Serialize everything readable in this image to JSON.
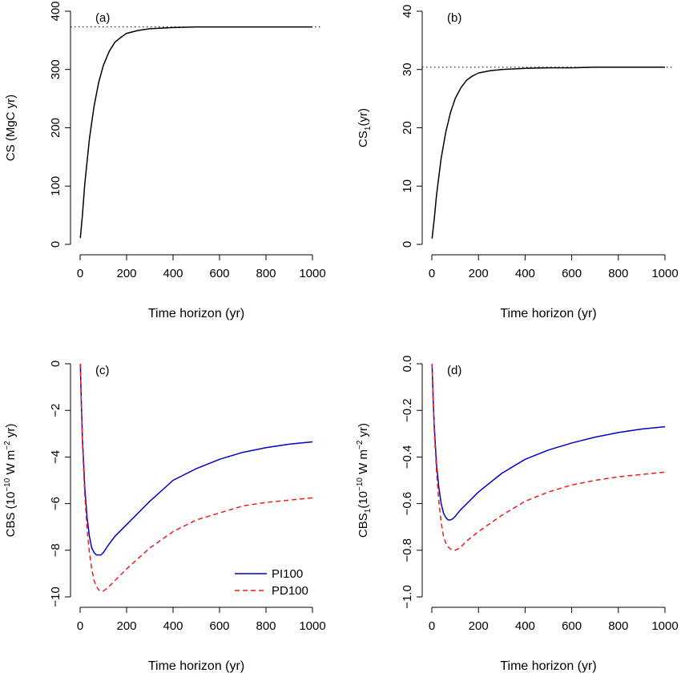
{
  "chart_data": [
    {
      "panel": "(a)",
      "type": "line",
      "xlabel": "Time horizon (yr)",
      "ylabel": "CS (MgC yr)",
      "xlim": [
        0,
        1000
      ],
      "ylim": [
        0,
        400
      ],
      "xticks": [
        0,
        200,
        400,
        600,
        800,
        1000
      ],
      "yticks": [
        0,
        100,
        200,
        300,
        400
      ],
      "asymptote": 373,
      "asymptote_style": "dotted",
      "series": [
        {
          "color": "#000000",
          "style": "solid",
          "x": [
            1,
            10,
            20,
            40,
            60,
            80,
            100,
            125,
            150,
            175,
            200,
            250,
            300,
            400,
            500,
            600,
            700,
            800,
            900,
            1000
          ],
          "y": [
            11,
            51,
            103,
            181,
            237,
            278,
            307,
            331,
            347,
            355,
            362,
            367,
            370,
            372,
            373,
            373,
            373,
            373,
            373,
            373
          ]
        }
      ]
    },
    {
      "panel": "(b)",
      "type": "line",
      "xlabel": "Time horizon (yr)",
      "ylabel_main": "CS",
      "ylabel_sub": "1",
      "ylabel_rest": "(yr)",
      "xlim": [
        0,
        1000
      ],
      "ylim": [
        0,
        40
      ],
      "xticks": [
        0,
        200,
        400,
        600,
        800,
        1000
      ],
      "yticks": [
        0,
        10,
        20,
        30,
        40
      ],
      "asymptote": 30.4,
      "asymptote_style": "dotted",
      "series": [
        {
          "color": "#000000",
          "style": "solid",
          "x": [
            1,
            10,
            20,
            40,
            60,
            80,
            100,
            125,
            150,
            175,
            200,
            250,
            300,
            400,
            500,
            600,
            700,
            800,
            900,
            1000
          ],
          "y": [
            1.0,
            4.2,
            8.4,
            14.8,
            19.3,
            22.6,
            25.0,
            26.9,
            28.2,
            28.9,
            29.4,
            29.8,
            30.0,
            30.2,
            30.3,
            30.3,
            30.4,
            30.4,
            30.4,
            30.4
          ]
        }
      ]
    },
    {
      "panel": "(c)",
      "type": "line",
      "xlabel": "Time horizon (yr)",
      "ylabel_pre": "CBS (10",
      "ylabel_sup1": "−10",
      "ylabel_mid": " W m",
      "ylabel_sup2": "−2",
      "ylabel_post": " yr)",
      "xlim": [
        0,
        1000
      ],
      "ylim": [
        -10,
        0
      ],
      "xticks": [
        0,
        200,
        400,
        600,
        800,
        1000
      ],
      "yticks": [
        0,
        -2,
        -4,
        -6,
        -8,
        -10
      ],
      "legend": [
        {
          "label": "PI100",
          "color": "#0000cc",
          "style": "solid"
        },
        {
          "label": "PD100",
          "color": "#ee1c1c",
          "style": "dashed"
        }
      ],
      "legend_position": "bottom-right of lower plot area",
      "series": [
        {
          "name": "PI100",
          "color": "#0000cc",
          "style": "solid",
          "x": [
            1,
            5,
            10,
            20,
            30,
            40,
            50,
            60,
            70,
            80,
            90,
            100,
            120,
            150,
            200,
            300,
            400,
            500,
            600,
            700,
            800,
            900,
            1000
          ],
          "y": [
            0,
            -1.6,
            -3.2,
            -5.3,
            -6.6,
            -7.4,
            -7.9,
            -8.1,
            -8.2,
            -8.2,
            -8.2,
            -8.1,
            -7.8,
            -7.4,
            -6.9,
            -5.9,
            -5.0,
            -4.5,
            -4.1,
            -3.8,
            -3.6,
            -3.45,
            -3.35
          ]
        },
        {
          "name": "PD100",
          "color": "#ee1c1c",
          "style": "dashed",
          "x": [
            1,
            5,
            10,
            20,
            30,
            40,
            50,
            60,
            70,
            80,
            90,
            100,
            120,
            150,
            200,
            300,
            400,
            500,
            600,
            700,
            800,
            900,
            1000
          ],
          "y": [
            0,
            -1.7,
            -3.4,
            -5.6,
            -7.1,
            -8.1,
            -8.8,
            -9.3,
            -9.55,
            -9.7,
            -9.75,
            -9.75,
            -9.6,
            -9.3,
            -8.8,
            -7.9,
            -7.2,
            -6.7,
            -6.4,
            -6.1,
            -5.95,
            -5.85,
            -5.75
          ]
        }
      ]
    },
    {
      "panel": "(d)",
      "type": "line",
      "xlabel": "Time horizon (yr)",
      "ylabel_pre": "CBS",
      "ylabel_sub": "1",
      "ylabel_mid": "(10",
      "ylabel_sup1": "−10",
      "ylabel_mid2": " W m",
      "ylabel_sup2": "−2",
      "ylabel_post": " yr)",
      "xlim": [
        0,
        1000
      ],
      "ylim": [
        -1.0,
        0.0
      ],
      "xticks": [
        0,
        200,
        400,
        600,
        800,
        1000
      ],
      "yticks": [
        0.0,
        -0.2,
        -0.4,
        -0.6,
        -0.8,
        -1.0
      ],
      "ytick_labels": [
        "0.0",
        "−0.2",
        "−0.4",
        "−0.6",
        "−0.8",
        "−1.0"
      ],
      "series": [
        {
          "name": "PI100",
          "color": "#0000cc",
          "style": "solid",
          "x": [
            1,
            5,
            10,
            20,
            30,
            40,
            50,
            60,
            70,
            80,
            90,
            100,
            120,
            150,
            200,
            300,
            400,
            500,
            600,
            700,
            800,
            900,
            1000
          ],
          "y": [
            0,
            -0.13,
            -0.26,
            -0.43,
            -0.53,
            -0.6,
            -0.64,
            -0.66,
            -0.67,
            -0.67,
            -0.665,
            -0.655,
            -0.63,
            -0.6,
            -0.55,
            -0.47,
            -0.41,
            -0.37,
            -0.34,
            -0.315,
            -0.295,
            -0.28,
            -0.27
          ]
        },
        {
          "name": "PD100",
          "color": "#ee1c1c",
          "style": "dashed",
          "x": [
            1,
            5,
            10,
            20,
            30,
            40,
            50,
            60,
            70,
            80,
            90,
            100,
            120,
            150,
            200,
            300,
            400,
            500,
            600,
            700,
            800,
            900,
            1000
          ],
          "y": [
            0,
            -0.14,
            -0.28,
            -0.46,
            -0.59,
            -0.68,
            -0.74,
            -0.77,
            -0.785,
            -0.795,
            -0.8,
            -0.8,
            -0.79,
            -0.76,
            -0.72,
            -0.65,
            -0.59,
            -0.55,
            -0.52,
            -0.5,
            -0.485,
            -0.475,
            -0.465
          ]
        }
      ]
    }
  ]
}
